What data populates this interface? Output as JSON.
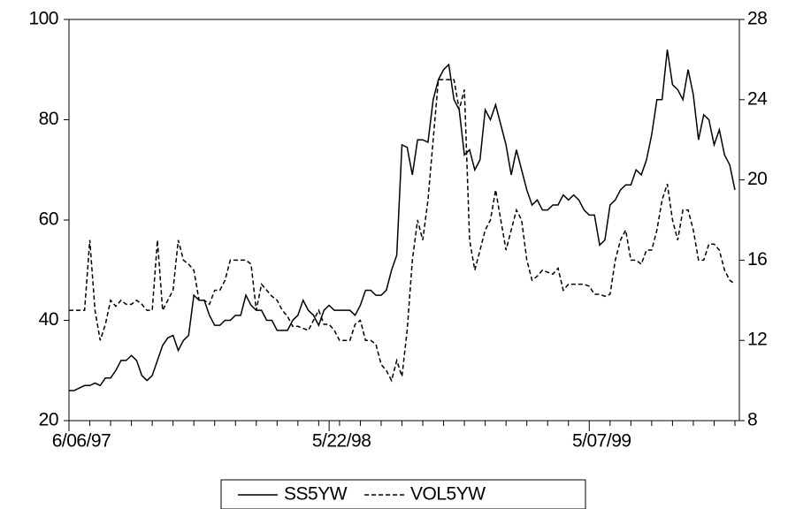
{
  "chart_data": {
    "type": "line",
    "categories": [
      "6/06/97",
      null,
      null,
      null,
      null,
      null,
      null,
      null,
      null,
      null,
      null,
      null,
      null,
      null,
      null,
      null,
      null,
      null,
      null,
      null,
      null,
      null,
      null,
      null,
      null,
      null,
      null,
      null,
      null,
      null,
      null,
      null,
      null,
      null,
      null,
      null,
      null,
      null,
      null,
      null,
      null,
      null,
      null,
      null,
      null,
      null,
      null,
      null,
      null,
      null,
      "5/22/98",
      null,
      null,
      null,
      null,
      null,
      null,
      null,
      null,
      null,
      null,
      null,
      null,
      null,
      null,
      null,
      null,
      null,
      null,
      null,
      null,
      null,
      null,
      null,
      null,
      null,
      null,
      null,
      null,
      null,
      null,
      null,
      null,
      null,
      null,
      null,
      null,
      null,
      null,
      null,
      null,
      null,
      null,
      null,
      null,
      null,
      null,
      null,
      null,
      null,
      "5/07/99",
      null,
      null,
      null,
      null,
      null,
      null,
      null,
      null,
      null,
      null,
      null,
      null,
      null,
      null,
      null,
      null,
      null,
      null,
      null,
      null,
      null,
      null,
      null,
      null,
      null,
      null,
      null,
      null
    ],
    "series": [
      {
        "name": "SS5YW",
        "color": "#000000",
        "style": "solid",
        "axis": "y",
        "values": [
          26,
          26,
          26.5,
          27,
          27,
          27.5,
          27,
          28.5,
          28.5,
          30,
          32,
          32,
          33,
          32,
          29,
          28,
          29,
          32,
          35,
          36.5,
          37,
          34,
          36,
          37,
          45,
          44,
          44,
          41,
          39,
          39,
          40,
          40,
          41,
          41,
          45,
          43,
          42,
          42,
          40,
          40,
          38,
          38,
          38,
          40,
          41,
          44,
          42,
          41,
          39,
          42,
          43,
          42,
          42,
          42,
          42,
          41,
          43,
          46,
          46,
          45,
          45,
          46,
          50,
          53,
          75,
          74.5,
          69,
          76,
          76,
          75.5,
          84,
          88,
          90,
          91,
          84,
          82,
          73,
          74,
          70,
          72,
          82,
          80,
          83,
          79,
          75,
          69,
          74,
          70,
          66,
          63,
          64,
          62,
          62,
          63,
          63,
          65,
          64,
          65,
          64,
          62,
          61,
          61,
          55,
          56,
          63,
          64,
          66,
          67,
          67,
          70,
          69,
          72,
          77,
          84,
          84,
          94,
          87,
          86,
          84,
          90,
          85,
          76,
          81,
          80,
          75,
          78,
          73,
          71,
          66
        ]
      },
      {
        "name": "VOL5YW",
        "color": "#000000",
        "style": "dashed",
        "axis": "y2",
        "values": [
          13.5,
          13.5,
          13.5,
          13.5,
          17,
          13.5,
          12,
          12.8,
          14,
          13.7,
          14,
          13.8,
          13.8,
          14,
          13.8,
          13.5,
          13.5,
          17,
          13.5,
          14,
          14.5,
          17,
          16,
          15.8,
          15.5,
          14,
          14,
          13.8,
          14.5,
          14.5,
          15,
          16,
          16,
          16,
          16,
          15.8,
          13.5,
          14.8,
          14.5,
          14.2,
          14,
          13.5,
          13.2,
          12.7,
          12.7,
          12.6,
          12.5,
          13,
          13.5,
          12.8,
          12.8,
          12.5,
          12,
          12,
          12,
          12.8,
          13,
          12,
          12,
          11.8,
          10.8,
          10.5,
          10,
          11,
          10.2,
          12.5,
          16,
          18,
          17,
          19,
          22,
          25,
          25,
          25,
          25,
          23.5,
          24.5,
          17,
          15.5,
          16.5,
          17.5,
          18,
          19.5,
          18,
          16.5,
          17.5,
          18.5,
          18,
          16,
          15,
          15.2,
          15.5,
          15.4,
          15.3,
          15.6,
          14.5,
          14.8,
          14.8,
          14.8,
          14.8,
          14.7,
          14.3,
          14.3,
          14.2,
          14.3,
          16,
          17,
          17.5,
          16,
          16,
          15.8,
          16.5,
          16.5,
          17.5,
          19,
          19.8,
          18,
          17,
          18.5,
          18.5,
          17.5,
          16,
          16,
          16.8,
          16.8,
          16.5,
          15.5,
          15,
          14.8
        ]
      }
    ],
    "ylim": [
      20,
      100
    ],
    "yticks": [
      20,
      40,
      60,
      80,
      100
    ],
    "y2lim": [
      8,
      28
    ],
    "y2ticks": [
      8,
      12,
      16,
      20,
      24,
      28
    ],
    "grid": false,
    "legend": "bottom"
  }
}
